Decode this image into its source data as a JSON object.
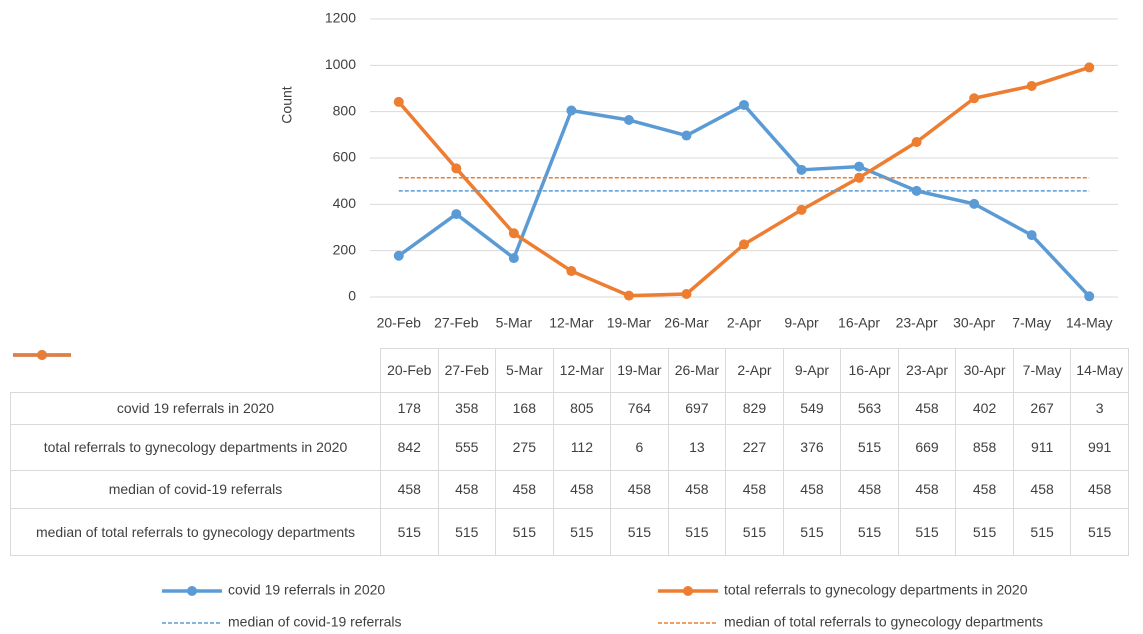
{
  "chart_data": {
    "type": "line",
    "y_label": "Count",
    "categories": [
      "20-Feb",
      "27-Feb",
      "5-Mar",
      "12-Mar",
      "19-Mar",
      "26-Mar",
      "2-Apr",
      "9-Apr",
      "16-Apr",
      "23-Apr",
      "30-Apr",
      "7-May",
      "14-May"
    ],
    "series": [
      {
        "name": "covid 19 referrals in 2020",
        "color": "#5b9bd5",
        "marker": true,
        "dashed": false,
        "values": [
          178,
          358,
          168,
          805,
          764,
          697,
          829,
          549,
          563,
          458,
          402,
          267,
          3
        ]
      },
      {
        "name": "total referrals to gynecology departments in 2020",
        "color": "#ed7d31",
        "marker": true,
        "dashed": false,
        "values": [
          842,
          555,
          275,
          112,
          6,
          13,
          227,
          376,
          515,
          669,
          858,
          911,
          991
        ]
      },
      {
        "name": "median of covid-19 referrals",
        "color": "#5b9bd5",
        "marker": false,
        "dashed": true,
        "values": [
          458,
          458,
          458,
          458,
          458,
          458,
          458,
          458,
          458,
          458,
          458,
          458,
          458
        ]
      },
      {
        "name": "median of total referrals to gynecology departments",
        "color": "#ed7d31",
        "marker": false,
        "dashed": true,
        "values": [
          515,
          515,
          515,
          515,
          515,
          515,
          515,
          515,
          515,
          515,
          515,
          515,
          515
        ]
      }
    ],
    "ylim": [
      0,
      1200
    ],
    "yticks": [
      0,
      200,
      400,
      600,
      800,
      1000,
      1200
    ],
    "grid": true,
    "legend": "bottom",
    "data_table": true
  }
}
